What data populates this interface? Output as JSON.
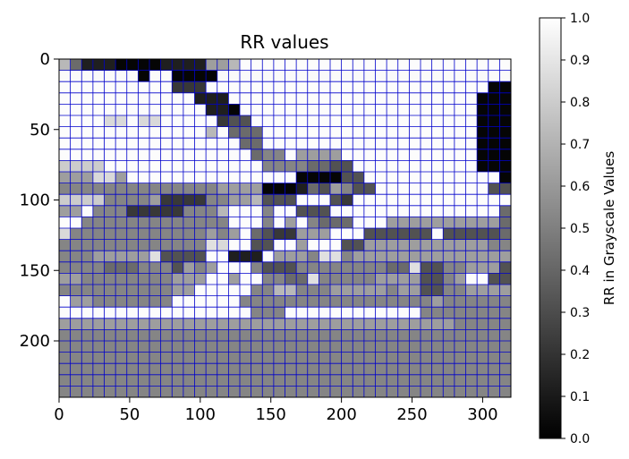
{
  "chart_data": {
    "type": "heatmap",
    "title": "RR values",
    "xlabel": "",
    "ylabel": "",
    "x_ticks": [
      0,
      50,
      100,
      150,
      200,
      250,
      300
    ],
    "y_ticks": [
      0,
      50,
      100,
      150,
      200
    ],
    "xlim": [
      0,
      320
    ],
    "ylim": [
      240,
      0
    ],
    "cell_size": 8,
    "grid": true,
    "grid_color": "#0000cc",
    "colormap": "gray",
    "colorbar": {
      "label": "RR in Grayscale Values",
      "range": [
        0.0,
        1.0
      ],
      "ticks": [
        "0.0",
        "0.1",
        "0.2",
        "0.3",
        "0.4",
        "0.5",
        "0.6",
        "0.7",
        "0.8",
        "0.9",
        "1.0"
      ],
      "position": "right"
    },
    "rows": [
      "7411100001111667WWWWWWWWWWWWWWWWWWWWWWWW3B22000000",
      "EEEEEEE0EE0000EEEEEEEEEEEEEEEEEEEEEEEEEEE00000000000",
      "WWWWWWWWWW222WWWWWWWWWWWWWWWWWWWWWWWWW00000000000011",
      "WWWWWWWWWWWW111WWWWWWWWWWWWWWWWWWWWWW0000000000000000",
      "WWWWWWWWWWWWW110WWWWWWWWWWWWWWWWWWWWW0000000000000000",
      "WWWWBBWBBWWWWW233WWWWWWWWWWWWWWWWWWWW00000000000A0000",
      "WWWWWWWWWWWWW7W444WWWWWWWWWWWWWWWWWWW00000000003300000",
      "WWWWWWWWWWWWWWWW44WWWWWWWWWWWWWWWWWWW0000000000B000000",
      "WWWWWWWWWWWWWWWWW455W6666WWWWWWWWWWWW00000022333130000",
      "8888WWWWWWWWWWWWWW55554433WWWWWWWWWWW000003444443330000",
      "666BB6WWWWWWWWWWWWWWW000033WWWWWWWWWWWW00000044446662200",
      "5555555555555566660001436533WWWWWWWWWW3322333355555555",
      "888855556222255667333WWW32WWWWWWWWWWWWWWWW1175557535777",
      "66W555222225557WWW5WW333WWWWWWWWWWWWWWW4442466666W6664",
      "WW5555555555555WWW5W6W5444WWW666666666645555555554W44B",
      "B555555555555656W4322666WWW333333W33333444445555558888",
      "5555555555555ABWW33WW6WWW3366666666666555221166667885",
      "55566666A3333WW111W6665AA566666666666666665111666666766",
      "55554445553656WWW53335555555544A33556663333001166544555",
      "6655555555666WW6WW5544A5555566663356WW3366444100456655",
      "555555555566WWWWW5577555666665663355666665420044655555",
      "W665555555WWWWWW55555555555555555655555554444466666666",
      "WWWWWWWWWWWWWWWWW555WWWWWWWWWWWW55555555555555555W5555",
      "6666666666666666666666666666666666655555555555555555555",
      "5555555555555555555555555555555555555555555555555555555",
      "5555555555555555555555555555555555555555555555555555555",
      "5555555555555555555555555555555555555555555555555555555",
      "5555555555555555555555555555555555555555555555555555555",
      "5555555555555555555555555555555555555555555555555555555",
      "5555555555555555555555555555555555555555555555555555555"
    ]
  }
}
